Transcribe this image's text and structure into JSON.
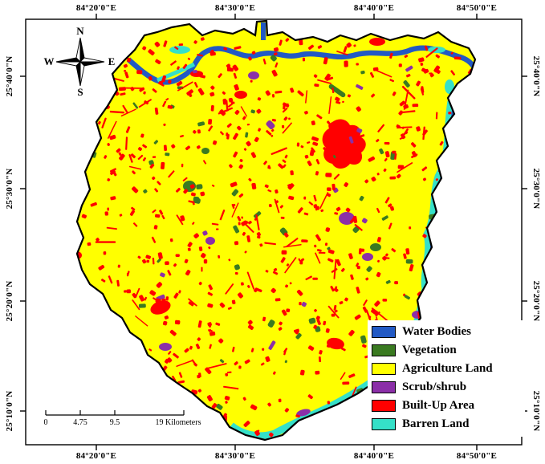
{
  "map": {
    "lon_labels": [
      "84°20'0\"E",
      "84°30'0\"E",
      "84°40'0\"E",
      "84°50'0\"E"
    ],
    "lat_labels": [
      "25°40'0\"N",
      "25°30'0\"N",
      "25°20'0\"N",
      "25°10'0\"N"
    ]
  },
  "compass": {
    "north": "N",
    "east": "E",
    "south": "S",
    "west": "W"
  },
  "scale_bar": {
    "labels": [
      "0",
      "4.75",
      "9.5"
    ],
    "end_label": "19 Kilometers"
  },
  "legend": {
    "items": [
      {
        "label": "Water Bodies",
        "color": "#2259c4"
      },
      {
        "label": "Vegetation",
        "color": "#3a7a21"
      },
      {
        "label": "Agriculture Land",
        "color": "#ffff00"
      },
      {
        "label": "Scrub/shrub",
        "color": "#8b2fa8"
      },
      {
        "label": "Built-Up Area",
        "color": "#ff0000"
      },
      {
        "label": "Barren Land",
        "color": "#35e0c8"
      }
    ]
  }
}
